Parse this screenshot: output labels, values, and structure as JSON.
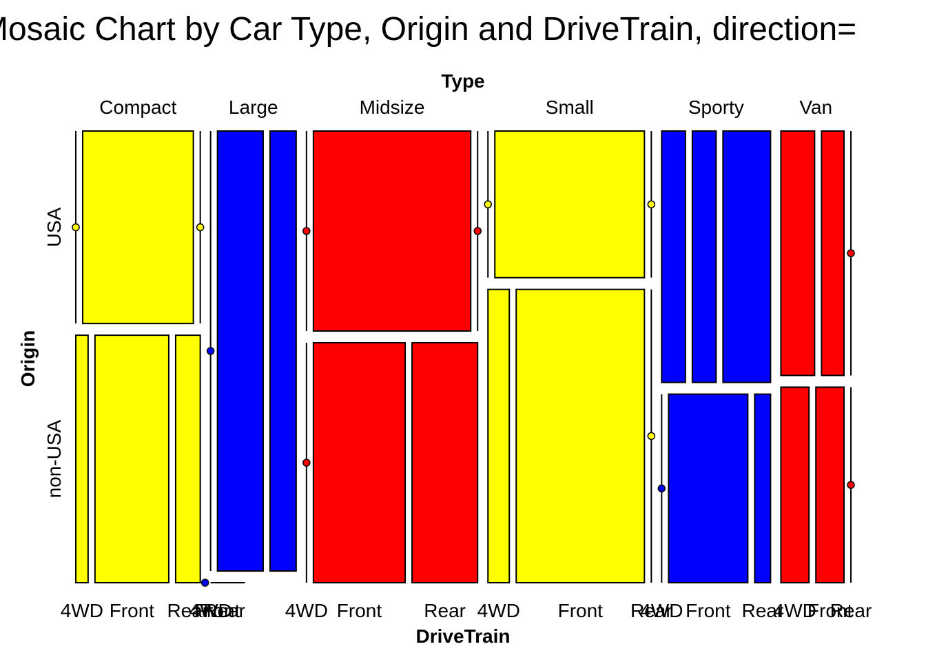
{
  "chart_data": {
    "type": "mosaic",
    "title": "Mosaic Chart by Car Type, Origin and DriveTrain, direction=",
    "xlabel": "DriveTrain",
    "ylabel": "Origin",
    "top_label": "Type",
    "categories": [
      "Compact",
      "Large",
      "Midsize",
      "Small",
      "Sporty",
      "Van"
    ],
    "origins": [
      "USA",
      "non-USA"
    ],
    "drivetrains": [
      "4WD",
      "Front",
      "Rear"
    ],
    "colors": {
      "Compact": "#ffff00",
      "Large": "#0000ff",
      "Midsize": "#ff0000",
      "Small": "#ffff00",
      "Sporty": "#0000ff",
      "Van": "#ff0000"
    },
    "counts": {
      "Compact": {
        "USA": [
          0,
          7,
          0
        ],
        "non-USA": [
          1,
          6,
          2
        ]
      },
      "Large": {
        "USA": [
          0,
          7,
          4
        ],
        "non-USA": [
          0,
          0,
          0
        ]
      },
      "Midsize": {
        "USA": [
          0,
          10,
          0
        ],
        "non-USA": [
          0,
          7,
          5
        ]
      },
      "Small": {
        "USA": [
          0,
          7,
          0
        ],
        "non-USA": [
          2,
          12,
          0
        ]
      },
      "Sporty": {
        "USA": [
          2,
          2,
          4
        ],
        "non-USA": [
          0,
          5,
          1
        ]
      },
      "Van": {
        "USA": [
          3,
          2,
          0
        ],
        "non-USA": [
          2,
          2,
          0
        ]
      }
    },
    "x_tick_labels": [
      "4WD",
      "Front",
      "Rear",
      "4WD",
      "Front",
      "Rear",
      "4WD",
      "Front",
      "Rear",
      "4WD",
      "Front",
      "Rear",
      "4WD",
      "Front",
      "Rear",
      "4WD",
      "Front",
      "Rear"
    ]
  }
}
